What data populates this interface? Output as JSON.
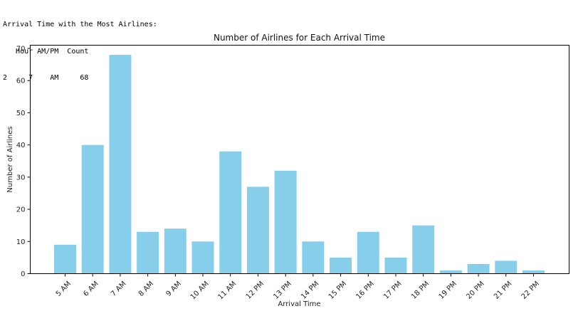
{
  "console": {
    "heading": "Arrival Time with the Most Airlines:",
    "header_row": "   Hour AM/PM  Count",
    "data_row": "2     7    AM     68"
  },
  "chart_data": {
    "type": "bar",
    "title": "Number of Airlines for Each Arrival Time",
    "xlabel": "Arrival Time",
    "ylabel": "Number of Airlines",
    "categories": [
      "5 AM",
      "6 AM",
      "7 AM",
      "8 AM",
      "9 AM",
      "10 AM",
      "11 AM",
      "12 PM",
      "13 PM",
      "14 PM",
      "15 PM",
      "16 PM",
      "17 PM",
      "18 PM",
      "19 PM",
      "20 PM",
      "21 PM",
      "22 PM"
    ],
    "values": [
      9,
      40,
      68,
      13,
      14,
      10,
      38,
      27,
      32,
      10,
      5,
      13,
      5,
      15,
      1,
      3,
      4,
      1
    ],
    "ylim": [
      0,
      71
    ],
    "yticks": [
      0,
      10,
      20,
      30,
      40,
      50,
      60,
      70
    ],
    "bar_color": "#87ceeb",
    "grid": false,
    "legend": "none"
  }
}
